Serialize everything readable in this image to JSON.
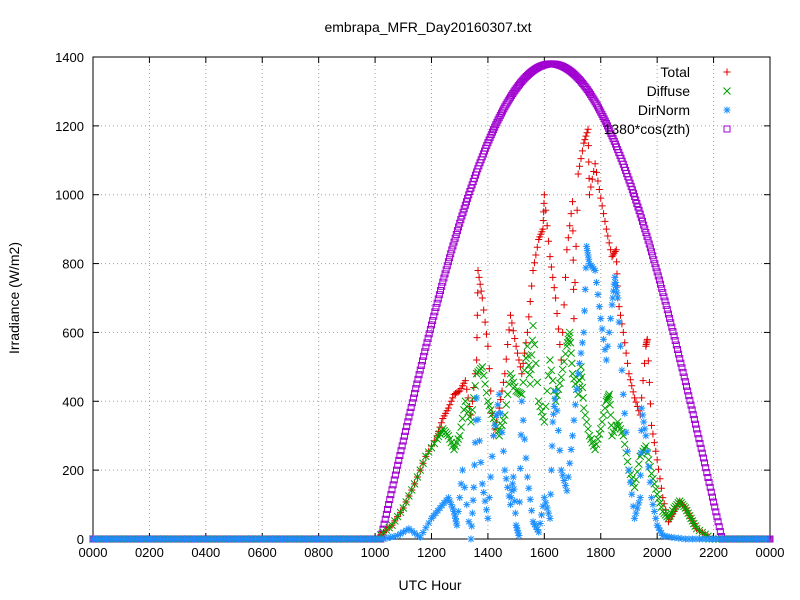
{
  "chart_data": {
    "type": "scatter",
    "title": "embrapa_MFR_Day20160307.txt",
    "xlabel": "UTC Hour",
    "ylabel": "Irradiance (W/m2)",
    "xlim": [
      0,
      24
    ],
    "ylim": [
      0,
      1400
    ],
    "grid": true,
    "legend_position": "top-right",
    "x_ticks": [
      "0000",
      "0200",
      "0400",
      "0600",
      "0800",
      "1000",
      "1200",
      "1400",
      "1600",
      "1800",
      "2000",
      "2200",
      "0000"
    ],
    "y_ticks": [
      0,
      200,
      400,
      600,
      800,
      1000,
      1200,
      1400
    ],
    "series": [
      {
        "name": "Total",
        "marker": "+",
        "color": "#e00000",
        "points": [
          [
            10.2,
            12
          ],
          [
            10.6,
            40
          ],
          [
            11.0,
            90
          ],
          [
            11.4,
            160
          ],
          [
            11.8,
            240
          ],
          [
            12.2,
            300
          ],
          [
            12.4,
            350
          ],
          [
            12.6,
            380
          ],
          [
            12.8,
            420
          ],
          [
            13.0,
            430
          ],
          [
            13.2,
            460
          ],
          [
            13.4,
            360
          ],
          [
            13.6,
            520
          ],
          [
            13.8,
            700
          ],
          [
            14.0,
            560
          ],
          [
            14.2,
            300
          ],
          [
            14.4,
            380
          ],
          [
            14.6,
            480
          ],
          [
            14.8,
            650
          ],
          [
            15.0,
            560
          ],
          [
            15.2,
            480
          ],
          [
            15.4,
            600
          ],
          [
            15.6,
            780
          ],
          [
            15.8,
            870
          ],
          [
            16.0,
            1000
          ],
          [
            16.2,
            820
          ],
          [
            16.4,
            700
          ],
          [
            16.6,
            520
          ],
          [
            16.8,
            840
          ],
          [
            17.0,
            980
          ],
          [
            17.2,
            1060
          ],
          [
            17.4,
            1150
          ],
          [
            17.6,
            1000
          ],
          [
            17.8,
            1090
          ],
          [
            18.0,
            990
          ],
          [
            18.2,
            900
          ],
          [
            18.4,
            820
          ],
          [
            18.6,
            700
          ],
          [
            18.8,
            600
          ],
          [
            19.0,
            480
          ],
          [
            19.2,
            410
          ],
          [
            19.4,
            360
          ],
          [
            19.6,
            560
          ],
          [
            19.8,
            330
          ],
          [
            20.0,
            230
          ],
          [
            20.2,
            120
          ],
          [
            20.4,
            50
          ],
          [
            20.6,
            80
          ],
          [
            20.8,
            110
          ],
          [
            21.0,
            90
          ],
          [
            21.2,
            60
          ],
          [
            21.4,
            30
          ],
          [
            21.8,
            8
          ],
          [
            13.65,
            780
          ],
          [
            15.95,
            900
          ],
          [
            17.05,
            640
          ],
          [
            17.55,
            1190
          ],
          [
            18.55,
            840
          ],
          [
            19.65,
            580
          ]
        ]
      },
      {
        "name": "Diffuse",
        "marker": "x",
        "color": "#00a000",
        "points": [
          [
            10.2,
            12
          ],
          [
            10.6,
            40
          ],
          [
            11.0,
            90
          ],
          [
            11.4,
            160
          ],
          [
            11.8,
            240
          ],
          [
            12.2,
            290
          ],
          [
            12.4,
            320
          ],
          [
            12.6,
            300
          ],
          [
            12.8,
            260
          ],
          [
            13.0,
            300
          ],
          [
            13.2,
            400
          ],
          [
            13.4,
            340
          ],
          [
            13.6,
            480
          ],
          [
            13.8,
            500
          ],
          [
            14.0,
            400
          ],
          [
            14.2,
            350
          ],
          [
            14.4,
            300
          ],
          [
            14.6,
            360
          ],
          [
            14.8,
            480
          ],
          [
            15.0,
            430
          ],
          [
            15.2,
            420
          ],
          [
            15.4,
            560
          ],
          [
            15.6,
            620
          ],
          [
            15.8,
            400
          ],
          [
            16.0,
            340
          ],
          [
            16.2,
            520
          ],
          [
            16.4,
            400
          ],
          [
            16.6,
            470
          ],
          [
            16.8,
            560
          ],
          [
            17.0,
            480
          ],
          [
            17.2,
            420
          ],
          [
            17.4,
            380
          ],
          [
            17.6,
            300
          ],
          [
            17.8,
            260
          ],
          [
            18.0,
            320
          ],
          [
            18.2,
            400
          ],
          [
            18.4,
            300
          ],
          [
            18.6,
            340
          ],
          [
            18.8,
            300
          ],
          [
            19.0,
            200
          ],
          [
            19.2,
            150
          ],
          [
            19.4,
            240
          ],
          [
            19.6,
            270
          ],
          [
            19.8,
            190
          ],
          [
            20.0,
            130
          ],
          [
            20.2,
            80
          ],
          [
            20.4,
            60
          ],
          [
            20.6,
            90
          ],
          [
            20.8,
            110
          ],
          [
            21.0,
            90
          ],
          [
            21.2,
            60
          ],
          [
            21.4,
            30
          ],
          [
            21.8,
            8
          ],
          [
            15.5,
            450
          ],
          [
            16.9,
            600
          ],
          [
            17.3,
            500
          ],
          [
            18.3,
            420
          ]
        ]
      },
      {
        "name": "DirNorm",
        "marker": "*",
        "color": "#1e90ff",
        "points": [
          [
            10.3,
            0
          ],
          [
            10.8,
            10
          ],
          [
            11.2,
            30
          ],
          [
            11.6,
            5
          ],
          [
            12.0,
            60
          ],
          [
            12.3,
            90
          ],
          [
            12.6,
            120
          ],
          [
            12.9,
            40
          ],
          [
            13.1,
            200
          ],
          [
            13.4,
            0
          ],
          [
            13.6,
            410
          ],
          [
            13.8,
            160
          ],
          [
            14.0,
            60
          ],
          [
            14.2,
            300
          ],
          [
            14.4,
            420
          ],
          [
            14.6,
            200
          ],
          [
            14.8,
            100
          ],
          [
            15.0,
            40
          ],
          [
            15.2,
            400
          ],
          [
            15.4,
            180
          ],
          [
            15.6,
            50
          ],
          [
            15.8,
            20
          ],
          [
            16.0,
            120
          ],
          [
            16.2,
            60
          ],
          [
            16.4,
            430
          ],
          [
            16.6,
            200
          ],
          [
            16.8,
            140
          ],
          [
            17.0,
            300
          ],
          [
            17.2,
            480
          ],
          [
            17.4,
            600
          ],
          [
            17.6,
            800
          ],
          [
            17.8,
            780
          ],
          [
            18.0,
            640
          ],
          [
            18.2,
            520
          ],
          [
            18.4,
            680
          ],
          [
            18.6,
            700
          ],
          [
            18.8,
            420
          ],
          [
            19.0,
            200
          ],
          [
            19.2,
            60
          ],
          [
            19.4,
            120
          ],
          [
            19.6,
            300
          ],
          [
            19.8,
            120
          ],
          [
            20.0,
            40
          ],
          [
            20.2,
            10
          ],
          [
            20.5,
            5
          ],
          [
            21.0,
            0
          ],
          [
            21.5,
            0
          ],
          [
            12.8,
            80
          ],
          [
            14.9,
            180
          ],
          [
            16.3,
            340
          ],
          [
            17.5,
            850
          ],
          [
            18.5,
            760
          ],
          [
            19.45,
            380
          ],
          [
            15.1,
            10
          ],
          [
            13.5,
            150
          ]
        ]
      },
      {
        "name": "1380*cos(zth)",
        "marker": "square",
        "color": "#a000d0",
        "curve": {
          "rise_hour": 10.2,
          "noon_hour": 16.25,
          "set_hour": 22.3,
          "peak": 1380
        }
      }
    ]
  }
}
